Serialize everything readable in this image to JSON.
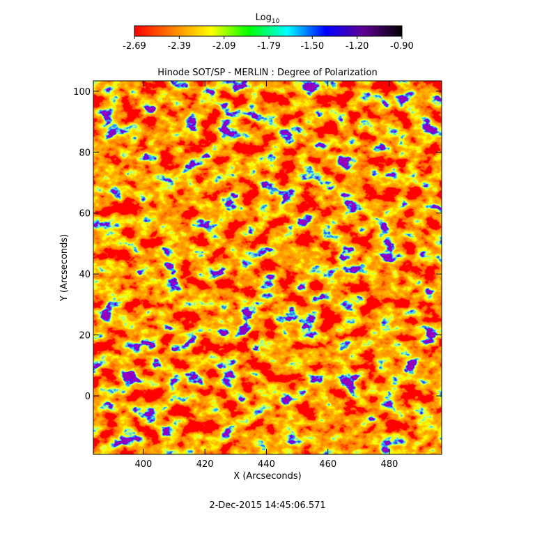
{
  "chart_data": {
    "type": "image",
    "title": "Hinode SOT/SP - MERLIN : Degree of Polarization",
    "x_label": "X (Arcseconds)",
    "y_label": "Y (Arcseconds)",
    "xlim": [
      383.7,
      497
    ],
    "ylim": [
      -19.2,
      103.4
    ],
    "xticks": [
      400,
      420,
      440,
      460,
      480
    ],
    "yticks": [
      0,
      20,
      40,
      60,
      80,
      100
    ],
    "colorbar": {
      "label": "Log",
      "label_subscript": "10",
      "lim": [
        -2.69,
        -0.9
      ],
      "ticks": [
        -2.69,
        -2.39,
        -2.09,
        -1.79,
        {
          "value": -1.5,
          "label": "-1.50"
        },
        {
          "value": -1.2,
          "label": "-1.20"
        },
        {
          "value": -0.9,
          "label": "-0.90"
        }
      ],
      "colors": [
        "#ff0000",
        "#ff8000",
        "#ffff00",
        "#00ff00",
        "#00ffff",
        "#0000ff",
        "#600090",
        "#000000"
      ]
    },
    "timestamp": "2-Dec-2015 14:45:06.571"
  }
}
